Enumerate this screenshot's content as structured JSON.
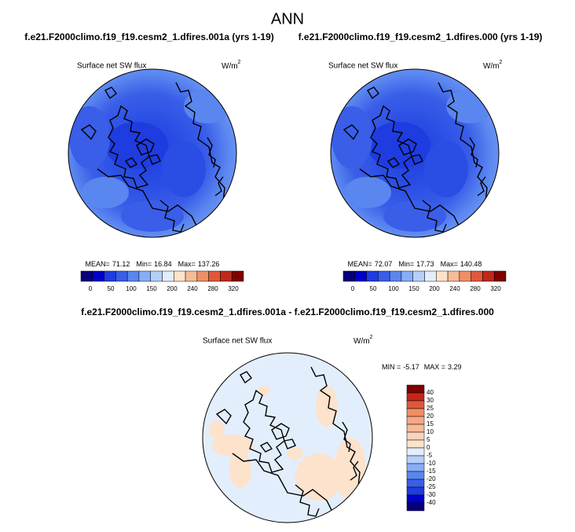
{
  "title": "ANN",
  "panels": [
    {
      "case": "f.e21.F2000climo.f19_f19.cesm2_1.dfires.001a (yrs 1-19)",
      "variable": "Surface net SW flux",
      "units": "W/m",
      "units_exp": "2",
      "stats": {
        "mean_label": "MEAN=",
        "mean": 71.12,
        "min_label": "Min=",
        "min": 16.84,
        "max_label": "Max=",
        "max": 137.26
      }
    },
    {
      "case": "f.e21.F2000climo.f19_f19.cesm2_1.dfires.000 (yrs 1-19)",
      "variable": "Surface net SW flux",
      "units": "W/m",
      "units_exp": "2",
      "stats": {
        "mean_label": "MEAN=",
        "mean": 72.07,
        "min_label": "Min=",
        "min": 17.73,
        "max_label": "Max=",
        "max": 140.48
      }
    }
  ],
  "colorbar": {
    "colors": [
      "#06007a",
      "#0000c8",
      "#1e3ce0",
      "#3a5ee8",
      "#5a86f0",
      "#87aef6",
      "#b4d0fa",
      "#e2eefb",
      "#fde2cc",
      "#f7bb97",
      "#f08f65",
      "#e0583a",
      "#c0281a",
      "#800000"
    ],
    "labels": [
      0,
      50,
      100,
      150,
      200,
      240,
      280,
      320
    ]
  },
  "difference": {
    "title": "f.e21.F2000climo.f19_f19.cesm2_1.dfires.001a - f.e21.F2000climo.f19_f19.cesm2_1.dfires.000",
    "variable": "Surface net SW flux",
    "units": "W/m",
    "units_exp": "2",
    "stats": {
      "min_label": "MIN =",
      "min": -5.17,
      "max_label": "MAX =",
      "max": 3.29
    },
    "colorbar": {
      "colors": [
        "#800000",
        "#c0281a",
        "#e0583a",
        "#f08f65",
        "#f7a882",
        "#f7bb97",
        "#fad3b8",
        "#fde2cc",
        "#e2eefb",
        "#b4d0fa",
        "#87aef6",
        "#5a86f0",
        "#3a5ee8",
        "#1e3ce0",
        "#0000c8",
        "#06007a"
      ],
      "labels": [
        40,
        30,
        25,
        20,
        15,
        10,
        5,
        0,
        -5,
        -10,
        -15,
        -20,
        -25,
        -30,
        -40
      ]
    }
  }
}
